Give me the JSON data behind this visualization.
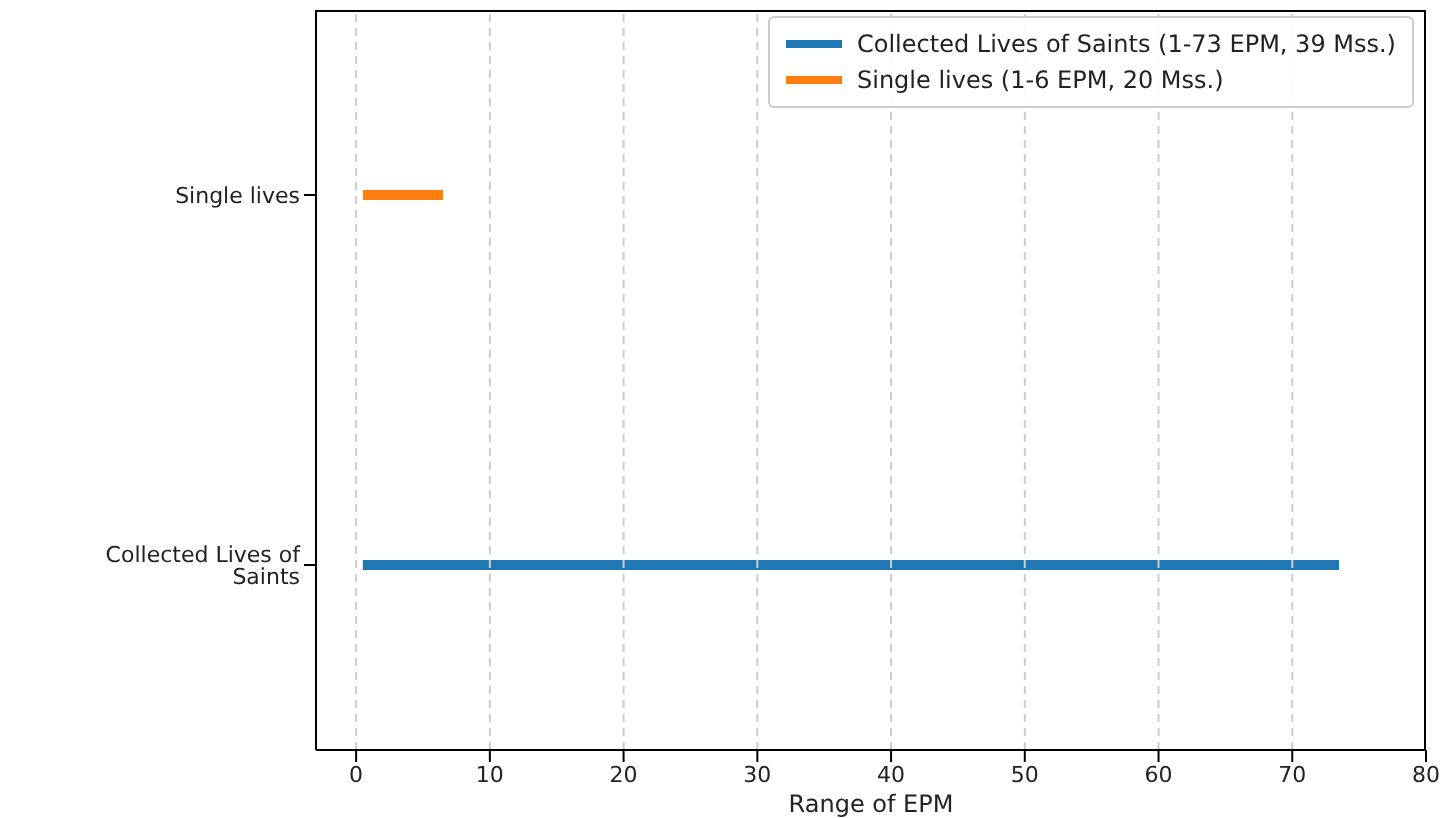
{
  "chart_data": {
    "type": "bar",
    "orientation": "horizontal",
    "xlabel": "Range of EPM",
    "categories": [
      "Single lives",
      "Collected Lives of Saints"
    ],
    "series": [
      {
        "name": "Collected Lives of Saints (1-73 EPM, 39 Mss.)",
        "color": "#1f77b4",
        "values": [
          null,
          73
        ],
        "base": [
          null,
          0.5
        ]
      },
      {
        "name": "Single lives (1-6 EPM, 20 Mss.)",
        "color": "#ff7f0e",
        "values": [
          6,
          null
        ],
        "base": [
          0.5,
          null
        ]
      }
    ],
    "xlim": [
      -3,
      80
    ],
    "xticks": [
      0,
      10,
      20,
      30,
      40,
      50,
      60,
      70,
      80
    ],
    "grid": "x",
    "legend": "top right"
  }
}
